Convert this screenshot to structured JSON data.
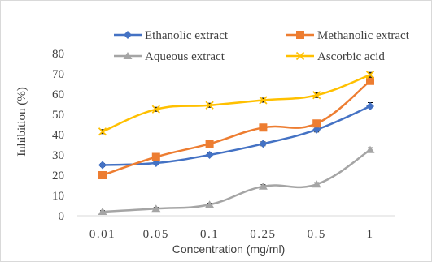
{
  "chart_data": {
    "type": "line",
    "title": "",
    "xlabel": "Concentration (mg/ml)",
    "ylabel": "Inhibition (%)",
    "categories": [
      "0.01",
      "0.05",
      "0.1",
      "0.25",
      "0.5",
      "1"
    ],
    "ylim": [
      0,
      80
    ],
    "yticks": [
      0,
      10,
      20,
      30,
      40,
      50,
      60,
      70,
      80
    ],
    "grid": false,
    "legend": "top",
    "series": [
      {
        "name": "Ethanolic extract",
        "values": [
          25,
          26,
          30,
          35.5,
          42.5,
          54
        ],
        "errors": [
          0.8,
          0.8,
          1.0,
          1.0,
          1.2,
          1.8
        ],
        "color": "#4472C4",
        "marker": "diamond"
      },
      {
        "name": "Methanolic extract",
        "values": [
          20,
          29,
          35.5,
          43.5,
          45.5,
          66.5
        ],
        "errors": [
          0.8,
          0.8,
          1.0,
          1.2,
          1.2,
          1.5
        ],
        "color": "#ED7D31",
        "marker": "square"
      },
      {
        "name": "Aqueous extract",
        "values": [
          2,
          3.5,
          5.5,
          14.5,
          15.5,
          32.5
        ],
        "errors": [
          0.5,
          0.6,
          0.7,
          0.8,
          0.8,
          1.0
        ],
        "color": "#A5A5A5",
        "marker": "triangle"
      },
      {
        "name": "Ascorbic acid",
        "values": [
          41.5,
          52.5,
          54.5,
          57,
          59.5,
          69.5
        ],
        "errors": [
          1.0,
          1.0,
          1.0,
          1.0,
          1.2,
          1.2
        ],
        "color": "#FFC000",
        "marker": "x"
      }
    ]
  }
}
